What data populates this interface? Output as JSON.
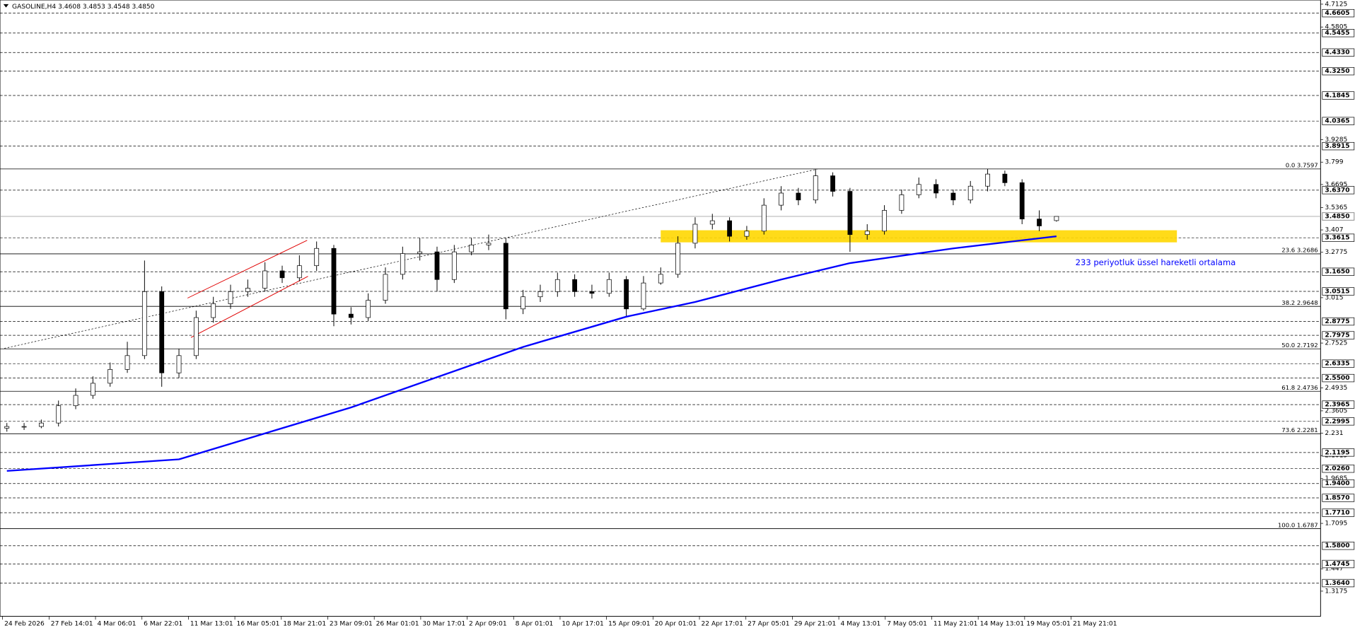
{
  "chart_data": {
    "type": "candlestick",
    "title": "GASOLINE,H4 3.4608 3.4853 3.4548 3.4850",
    "ylim": [
      1.3175,
      4.7125
    ],
    "yticks": [
      4.7125,
      4.5805,
      3.9285,
      3.799,
      3.6695,
      3.5365,
      3.407,
      3.2775,
      3.015,
      2.7525,
      2.4935,
      2.3605,
      2.231,
      2.1015,
      1.9685,
      1.7095,
      1.447,
      1.3175
    ],
    "levels": [
      4.6605,
      4.5455,
      {
        "value": 4.433,
        "label": "4.4330"
      },
      {
        "value": 4.325,
        "label": "4.3250"
      },
      4.1845,
      4.0365,
      3.8915,
      {
        "value": 3.637,
        "label": "3.6370"
      },
      3.3615,
      {
        "value": 3.165,
        "label": "3.1650"
      },
      3.0515,
      2.8775,
      2.7975,
      2.6335,
      {
        "value": 2.55,
        "label": "2.5500"
      },
      2.3965,
      2.2995,
      2.1195,
      {
        "value": 2.026,
        "label": "2.0260"
      },
      {
        "value": 1.94,
        "label": "1.9400"
      },
      {
        "value": 1.857,
        "label": "1.8570"
      },
      {
        "value": 1.771,
        "label": "1.7710"
      },
      {
        "value": 1.58,
        "label": "1.5800"
      },
      1.4745,
      {
        "value": 1.364,
        "label": "1.3640"
      }
    ],
    "current_price": {
      "value": 3.485,
      "label": "3.4850"
    },
    "fibonacci": [
      {
        "value": 3.7597,
        "label": "0.0 3.7597"
      },
      {
        "value": 3.2686,
        "label": "23.6 3.2686"
      },
      {
        "value": 2.9648,
        "label": "38.2 2.9648"
      },
      {
        "value": 2.7192,
        "label": "50.0 2.7192"
      },
      {
        "value": 2.4736,
        "label": "61.8 2.4736"
      },
      {
        "value": 2.2281,
        "label": "73.6 2.2281"
      },
      {
        "value": 1.6787,
        "label": "100.0 1.6787"
      }
    ],
    "x_labels": [
      "24 Feb 2026",
      "27 Feb 14:01",
      "4 Mar 06:01",
      "6 Mar 22:01",
      "11 Mar 13:01",
      "16 Mar 05:01",
      "18 Mar 21:01",
      "23 Mar 09:01",
      "26 Mar 01:01",
      "30 Mar 17:01",
      "2 Apr 09:01",
      "8 Apr 01:01",
      "10 Apr 17:01",
      "15 Apr 09:01",
      "20 Apr 01:01",
      "22 Apr 17:01",
      "27 Apr 05:01",
      "29 Apr 21:01",
      "4 May 13:01",
      "7 May 05:01",
      "11 May 21:01",
      "14 May 13:01",
      "19 May 05:01",
      "21 May 21:01"
    ],
    "open": [
      2.26,
      2.27,
      2.27,
      2.29,
      2.39,
      2.45,
      2.52,
      2.6,
      2.68,
      3.05,
      2.58,
      2.68,
      2.9,
      2.98,
      3.05,
      3.07,
      3.17,
      3.13,
      3.2,
      3.3,
      2.92,
      2.9,
      3.0,
      3.15,
      3.27,
      3.28,
      3.12,
      3.28,
      3.32,
      3.33,
      2.95,
      3.02,
      3.05,
      3.12,
      3.05,
      3.04,
      3.12,
      2.95,
      3.1,
      3.15,
      3.33,
      3.44,
      3.46,
      3.37,
      3.4,
      3.55,
      3.62,
      3.58,
      3.72,
      3.63,
      3.38,
      3.4,
      3.52,
      3.61,
      3.67,
      3.62,
      3.58,
      3.66,
      3.73,
      3.68,
      3.47,
      3.4608
    ],
    "high": [
      2.29,
      2.29,
      2.31,
      2.42,
      2.49,
      2.56,
      2.64,
      2.76,
      3.23,
      3.08,
      2.72,
      2.94,
      3.02,
      3.09,
      3.12,
      3.22,
      3.2,
      3.26,
      3.34,
      3.32,
      2.96,
      3.04,
      3.19,
      3.31,
      3.36,
      3.31,
      3.32,
      3.36,
      3.38,
      3.36,
      3.06,
      3.09,
      3.16,
      3.15,
      3.09,
      3.16,
      3.14,
      3.14,
      3.19,
      3.37,
      3.48,
      3.5,
      3.48,
      3.43,
      3.59,
      3.66,
      3.65,
      3.76,
      3.74,
      3.65,
      3.44,
      3.55,
      3.64,
      3.71,
      3.7,
      3.64,
      3.69,
      3.76,
      3.75,
      3.7,
      3.52,
      3.4853
    ],
    "low": [
      2.24,
      2.25,
      2.26,
      2.27,
      2.37,
      2.43,
      2.5,
      2.58,
      2.66,
      2.5,
      2.55,
      2.66,
      2.87,
      2.95,
      3.02,
      3.05,
      3.1,
      3.11,
      3.17,
      2.85,
      2.86,
      2.88,
      2.98,
      3.12,
      3.23,
      3.05,
      3.1,
      3.26,
      3.29,
      2.89,
      2.92,
      2.99,
      3.02,
      3.02,
      3.01,
      3.02,
      2.9,
      2.94,
      3.09,
      3.13,
      3.3,
      3.41,
      3.34,
      3.35,
      3.38,
      3.52,
      3.55,
      3.56,
      3.6,
      3.28,
      3.35,
      3.38,
      3.5,
      3.59,
      3.59,
      3.55,
      3.56,
      3.63,
      3.66,
      3.44,
      3.4,
      3.4548
    ],
    "close": [
      2.27,
      2.27,
      2.29,
      2.39,
      2.45,
      2.52,
      2.6,
      2.68,
      3.05,
      2.58,
      2.68,
      2.9,
      2.98,
      3.05,
      3.07,
      3.17,
      3.13,
      3.2,
      3.3,
      2.92,
      2.9,
      3.0,
      3.15,
      3.27,
      3.28,
      3.12,
      3.28,
      3.32,
      3.33,
      2.95,
      3.02,
      3.05,
      3.12,
      3.05,
      3.04,
      3.12,
      2.95,
      3.1,
      3.15,
      3.33,
      3.44,
      3.46,
      3.37,
      3.4,
      3.55,
      3.62,
      3.58,
      3.72,
      3.63,
      3.38,
      3.4,
      3.52,
      3.61,
      3.67,
      3.62,
      3.58,
      3.66,
      3.73,
      3.68,
      3.47,
      3.43,
      3.485
    ],
    "ema": {
      "name": "233 periyotluk üssel hareketli ortalama",
      "color": "#0000ff",
      "x": [
        0,
        10,
        20,
        30,
        36,
        40,
        45,
        49,
        55,
        61
      ],
      "values": [
        2.013,
        2.08,
        2.38,
        2.73,
        2.905,
        2.99,
        3.12,
        3.215,
        3.3,
        3.37
      ]
    },
    "zone": {
      "color": "#ffd700",
      "x": [
        38,
        68
      ],
      "values": [
        3.335,
        3.405
      ]
    }
  }
}
